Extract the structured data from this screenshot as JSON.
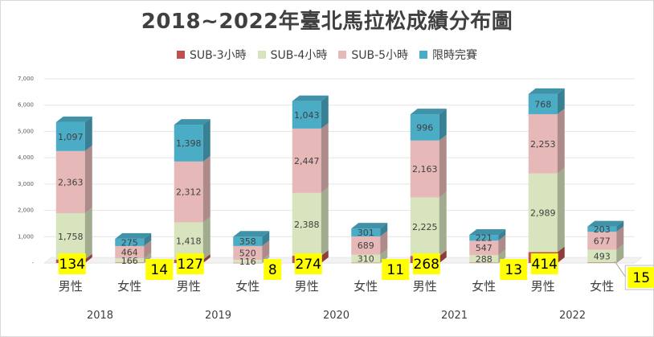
{
  "chart_data": {
    "type": "bar",
    "title": "2018~2022年臺北馬拉松成績分布圖",
    "xlabel": "",
    "ylabel": "",
    "ylim": [
      0,
      7000
    ],
    "yticks": [
      "-",
      "1,000",
      "2,000",
      "3,000",
      "4,000",
      "5,000",
      "6,000",
      "7,000"
    ],
    "stacked": true,
    "grid": true,
    "legend_position": "top",
    "years": [
      "2018",
      "2019",
      "2020",
      "2021",
      "2022"
    ],
    "genders": [
      "男性",
      "女性"
    ],
    "categories": [
      "2018 男性",
      "2018 女性",
      "2019 男性",
      "2019 女性",
      "2020 男性",
      "2020 女性",
      "2021 男性",
      "2021 女性",
      "2022 男性",
      "2022 女性"
    ],
    "series": [
      {
        "name": "SUB-3小時",
        "color": "#c0504d",
        "values": [
          134,
          14,
          127,
          8,
          274,
          11,
          268,
          13,
          414,
          15
        ],
        "labels": [
          "134",
          "14",
          "127",
          "8",
          "274",
          "11",
          "268",
          "13",
          "414",
          "15"
        ]
      },
      {
        "name": "SUB-4小時",
        "color": "#d7e4bd",
        "values": [
          1758,
          166,
          1418,
          116,
          2388,
          310,
          2225,
          288,
          2989,
          493
        ],
        "labels": [
          "1,758",
          "166",
          "1,418",
          "116",
          "2,388",
          "310",
          "2,225",
          "288",
          "2,989",
          "493"
        ]
      },
      {
        "name": "SUB-5小時",
        "color": "#e6b9b8",
        "values": [
          2363,
          464,
          2312,
          520,
          2447,
          689,
          2163,
          547,
          2253,
          677
        ],
        "labels": [
          "2,363",
          "464",
          "2,312",
          "520",
          "2,447",
          "689",
          "2,163",
          "547",
          "2,253",
          "677"
        ]
      },
      {
        "name": "限時完賽",
        "color": "#4bacc6",
        "values": [
          1097,
          275,
          1398,
          358,
          1043,
          301,
          996,
          221,
          768,
          203
        ],
        "labels": [
          "1,097",
          "275",
          "1,398",
          "358",
          "1,043",
          "301",
          "996",
          "221",
          "768",
          "203"
        ]
      }
    ]
  }
}
